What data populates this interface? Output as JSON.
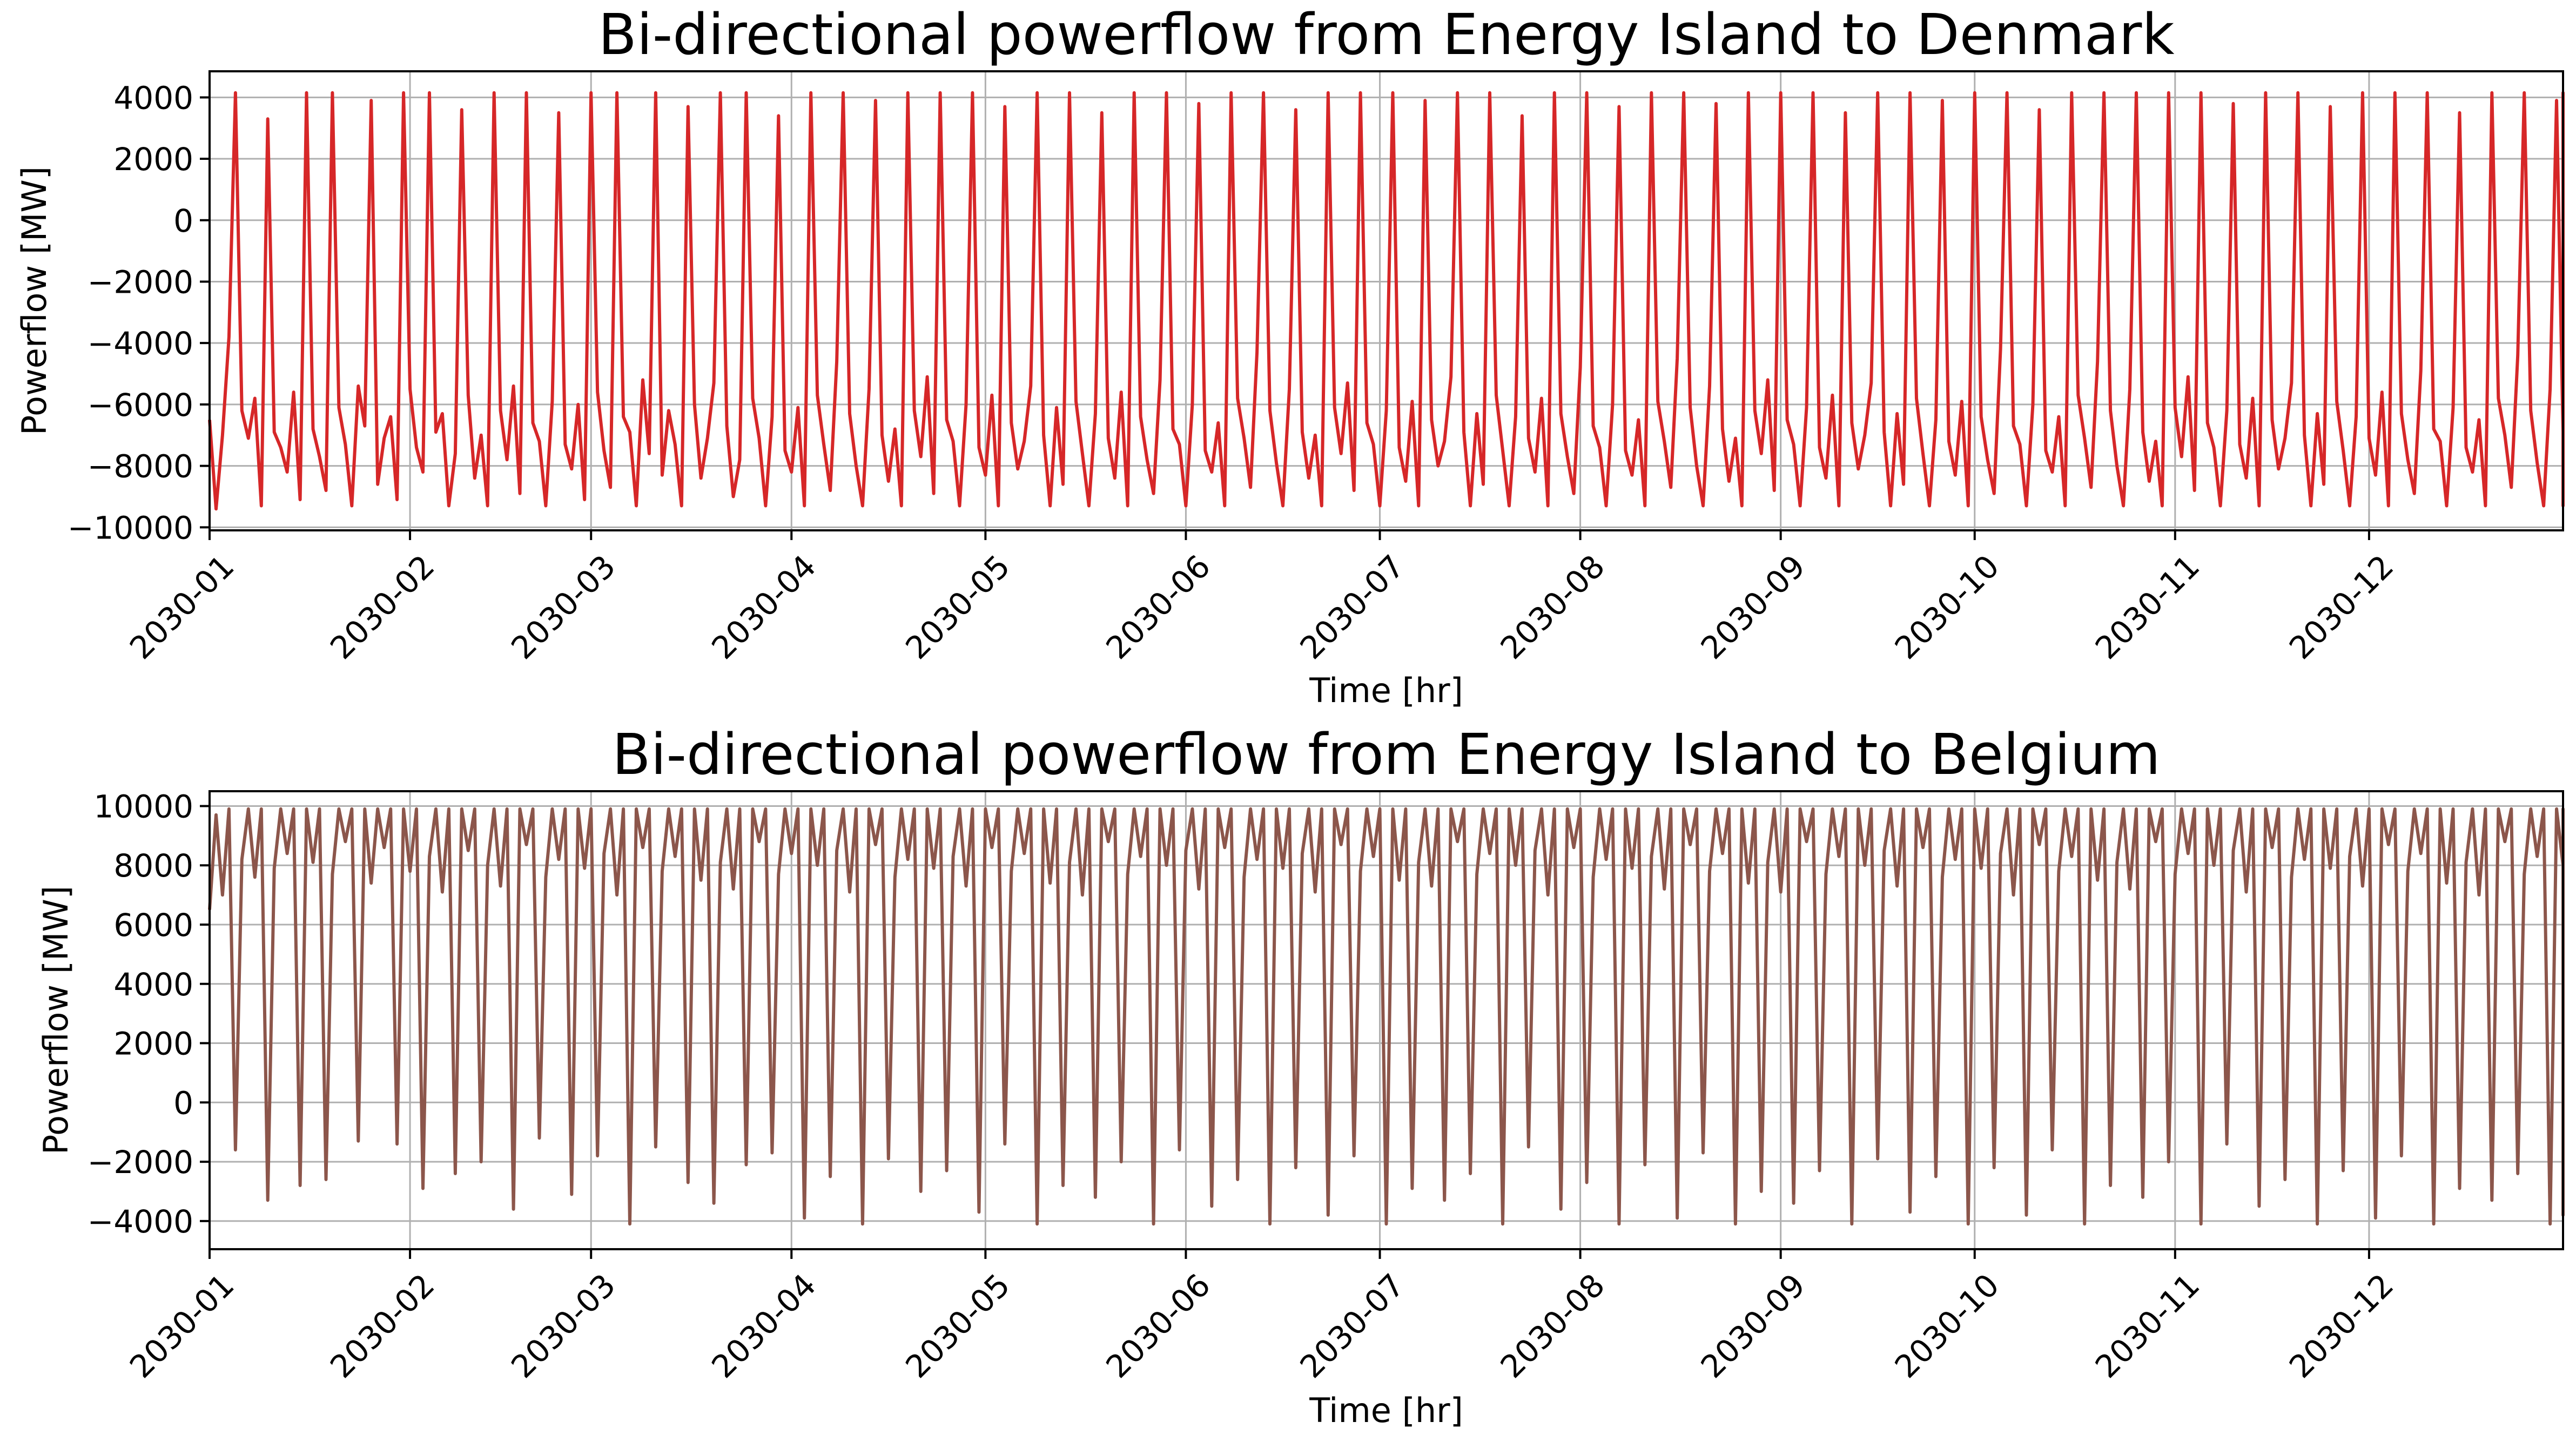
{
  "chart_data": [
    {
      "type": "line",
      "title": "Bi-directional powerflow from Energy Island to Denmark",
      "xlabel": "Time [hr]",
      "ylabel": "Powerflow [MW]",
      "x_tick_labels": [
        "2030-01",
        "2030-02",
        "2030-03",
        "2030-04",
        "2030-05",
        "2030-06",
        "2030-07",
        "2030-08",
        "2030-09",
        "2030-10",
        "2030-11",
        "2030-12"
      ],
      "y_tick_labels": [
        "−10000",
        "−8000",
        "−6000",
        "−4000",
        "−2000",
        "0",
        "2000",
        "4000"
      ],
      "y_ticks": [
        -10000,
        -8000,
        -6000,
        -4000,
        -2000,
        0,
        2000,
        4000
      ],
      "xlim": [
        "2030-01-01",
        "2030-12-31"
      ],
      "ylim": [
        -10100,
        4850
      ],
      "grid": true,
      "series": [
        {
          "color": "#d62728",
          "x_start": "2030-01-01",
          "x_step": "1 day",
          "values_note": "daily samples of an hourly series oscillating between about -9400 and 4150 MW",
          "values": [
            -6500,
            -9400,
            -7000,
            -3800,
            4150,
            -6200,
            -7100,
            -5800,
            -9300,
            3300,
            -6900,
            -7400,
            -8200,
            -5600,
            -9100,
            4150,
            -6800,
            -7700,
            -8800,
            4150,
            -6100,
            -7300,
            -9300,
            -5400,
            -6700,
            3900,
            -8600,
            -7100,
            -6400,
            -9100,
            4150,
            -5500,
            -7400,
            -8200,
            4150,
            -6900,
            -6300,
            -9300,
            -7600,
            3600,
            -5700,
            -8400,
            -7000,
            -9300,
            4150,
            -6200,
            -7800,
            -5400,
            -8900,
            4150,
            -6600,
            -7200,
            -9300,
            -5900,
            3500,
            -7300,
            -8100,
            -6000,
            -9100,
            4150,
            -5600,
            -7500,
            -8700,
            4150,
            -6400,
            -6900,
            -9300,
            -5200,
            -7600,
            4150,
            -8300,
            -6200,
            -7300,
            -9300,
            3700,
            -6000,
            -8400,
            -7100,
            -5300,
            4150,
            -6700,
            -9000,
            -7800,
            4150,
            -5800,
            -7100,
            -9300,
            -6400,
            3400,
            -7500,
            -8200,
            -6100,
            -9300,
            4150,
            -5700,
            -7300,
            -8800,
            -4600,
            4150,
            -6300,
            -8000,
            -9300,
            -5500,
            3900,
            -7000,
            -8500,
            -6800,
            -9300,
            4150,
            -6200,
            -7700,
            -5100,
            -8900,
            4150,
            -6500,
            -7200,
            -9300,
            -6000,
            4150,
            -7400,
            -8300,
            -5700,
            -9300,
            3700,
            -6600,
            -8100,
            -7200,
            -5400,
            4150,
            -7000,
            -9300,
            -6100,
            -8600,
            4150,
            -5900,
            -7600,
            -9300,
            -6300,
            3500,
            -7100,
            -8400,
            -5600,
            -9300,
            4150,
            -6400,
            -7800,
            -8900,
            -5200,
            4150,
            -6800,
            -7300,
            -9300,
            -6000,
            3800,
            -7500,
            -8200,
            -6600,
            -9300,
            4150,
            -5800,
            -7100,
            -8700,
            -4300,
            4150,
            -6200,
            -7900,
            -9300,
            -5500,
            3600,
            -6900,
            -8400,
            -7000,
            -9300,
            4150,
            -6100,
            -7600,
            -5300,
            -8800,
            4150,
            -6600,
            -7300,
            -9300,
            -6200,
            4150,
            -7400,
            -8500,
            -5900,
            -9300,
            3900,
            -6500,
            -8000,
            -7200,
            -5100,
            4150,
            -6900,
            -9300,
            -6300,
            -8600,
            4150,
            -5700,
            -7500,
            -9300,
            -6400,
            3400,
            -7100,
            -8200,
            -5800,
            -9300,
            4150,
            -6300,
            -7700,
            -8900,
            -4800,
            4150,
            -6700,
            -7400,
            -9300,
            -6000,
            3700,
            -7500,
            -8300,
            -6500,
            -9300,
            4150,
            -5900,
            -7200,
            -8700,
            -4500,
            4150,
            -6100,
            -8000,
            -9300,
            -5400,
            3800,
            -6800,
            -8500,
            -7100,
            -9300,
            4150,
            -6200,
            -7600,
            -5200,
            -8800,
            4150,
            -6500,
            -7300,
            -9300,
            -6100,
            4150,
            -7400,
            -8400,
            -5700,
            -9300,
            3500,
            -6600,
            -8100,
            -7000,
            -5300,
            4150,
            -6900,
            -9300,
            -6300,
            -8600,
            4150,
            -5800,
            -7600,
            -9300,
            -6500,
            3900,
            -7200,
            -8300,
            -5900,
            -9300,
            4150,
            -6400,
            -7800,
            -8900,
            -4200,
            4150,
            -6700,
            -7300,
            -9300,
            -6000,
            3600,
            -7500,
            -8200,
            -6400,
            -9300,
            4150,
            -5700,
            -7100,
            -8700,
            -4600,
            4150,
            -6200,
            -8000,
            -9300,
            -5500,
            4150,
            -6900,
            -8500,
            -7200,
            -9300,
            4150,
            -6100,
            -7700,
            -5100,
            -8800,
            4150,
            -6600,
            -7400,
            -9300,
            -6200,
            3800,
            -7300,
            -8400,
            -5800,
            -9300,
            4150,
            -6500,
            -8100,
            -7100,
            -5300,
            4150,
            -7000,
            -9300,
            -6300,
            -8600,
            3700,
            -5900,
            -7500,
            -9300,
            -6400,
            4150,
            -7100,
            -8300,
            -5600,
            -9300,
            4150,
            -6300,
            -7800,
            -8900,
            -4900,
            4150,
            -6800,
            -7200,
            -9300,
            -6100,
            3500,
            -7400,
            -8200,
            -6500,
            -9300,
            4150,
            -5800,
            -7000,
            -8700,
            -4400,
            4150,
            -6200,
            -7900,
            -9300,
            -5500,
            3900,
            -6900,
            -8500,
            -7300,
            -9300,
            4150,
            -6000,
            -7600,
            -5200,
            -8800,
            4150,
            -6700,
            -7400,
            -9300,
            -6300,
            4150,
            -7500,
            -8400,
            -5700,
            -9300,
            3600,
            -6500,
            -8000,
            -7100,
            -5400,
            4150,
            -6900,
            -9300,
            -6200,
            -8600,
            4150,
            -5700,
            -7600,
            -9300,
            -6600,
            3800
          ]
        }
      ]
    },
    {
      "type": "line",
      "title": "Bi-directional powerflow from Energy Island to Belgium",
      "xlabel": "Time [hr]",
      "ylabel": "Powerflow [MW]",
      "x_tick_labels": [
        "2030-01",
        "2030-02",
        "2030-03",
        "2030-04",
        "2030-05",
        "2030-06",
        "2030-07",
        "2030-08",
        "2030-09",
        "2030-10",
        "2030-11",
        "2030-12"
      ],
      "y_tick_labels": [
        "−4000",
        "−2000",
        "0",
        "2000",
        "4000",
        "6000",
        "8000",
        "10000"
      ],
      "y_ticks": [
        -4000,
        -2000,
        0,
        2000,
        4000,
        6000,
        8000,
        10000
      ],
      "xlim": [
        "2030-01-01",
        "2030-12-31"
      ],
      "ylim": [
        -4950,
        10500
      ],
      "grid": true,
      "series": [
        {
          "color": "#8c564b",
          "x_start": "2030-01-01",
          "x_step": "1 day",
          "values_note": "daily samples of an hourly series oscillating between about -4100 and 9900 MW",
          "values": [
            6500,
            9700,
            7000,
            9900,
            -1600,
            8200,
            9900,
            7600,
            9900,
            -3300,
            7900,
            9900,
            8400,
            9900,
            -2800,
            9900,
            8100,
            9900,
            -2600,
            7700,
            9900,
            8800,
            9900,
            -1300,
            9900,
            7400,
            9900,
            8600,
            9900,
            -1400,
            9900,
            7800,
            9900,
            -2900,
            8300,
            9900,
            7100,
            9900,
            -2400,
            9900,
            8500,
            9900,
            -2000,
            8000,
            9900,
            7300,
            9900,
            -3600,
            9900,
            8700,
            9900,
            -1200,
            7600,
            9900,
            8200,
            9900,
            -3100,
            9900,
            7900,
            9900,
            -1800,
            8400,
            9900,
            7000,
            9900,
            -4100,
            9900,
            8600,
            9900,
            -1500,
            7800,
            9900,
            8300,
            9900,
            -2700,
            9900,
            7500,
            9900,
            -3400,
            8100,
            9900,
            7200,
            9900,
            -2100,
            9900,
            8800,
            9900,
            -1700,
            7700,
            9900,
            8400,
            9900,
            -3900,
            9900,
            8000,
            9900,
            -2500,
            8500,
            9900,
            7100,
            9900,
            -4100,
            9900,
            8700,
            9900,
            -1900,
            7600,
            9900,
            8200,
            9900,
            -3000,
            9900,
            7900,
            9900,
            -2300,
            8300,
            9900,
            7300,
            9900,
            -3700,
            9900,
            8600,
            9900,
            -1400,
            7800,
            9900,
            8400,
            9900,
            -4100,
            9900,
            7400,
            9900,
            -2800,
            8100,
            9900,
            7000,
            9900,
            -3200,
            9900,
            8800,
            9900,
            -2000,
            7700,
            9900,
            8300,
            9900,
            -4100,
            9900,
            8000,
            9900,
            -1600,
            8500,
            9900,
            7200,
            9900,
            -3500,
            9900,
            8600,
            9900,
            -2600,
            7600,
            9900,
            8200,
            9900,
            -4100,
            9900,
            7900,
            9900,
            -2200,
            8400,
            9900,
            7100,
            9900,
            -3800,
            9900,
            8700,
            9900,
            -1800,
            7800,
            9900,
            8300,
            9900,
            -4100,
            9900,
            7500,
            9900,
            -2900,
            8100,
            9900,
            7300,
            9900,
            -3300,
            9900,
            8800,
            9900,
            -2400,
            7700,
            9900,
            8400,
            9900,
            -4100,
            9900,
            8000,
            9900,
            -1500,
            8500,
            9900,
            7000,
            9900,
            -3600,
            9900,
            8600,
            9900,
            -2700,
            7600,
            9900,
            8200,
            9900,
            -4100,
            9900,
            7900,
            9900,
            -2100,
            8300,
            9900,
            7200,
            9900,
            -3900,
            9900,
            8700,
            9900,
            -1700,
            7800,
            9900,
            8400,
            9900,
            -4100,
            9900,
            7400,
            9900,
            -3000,
            8100,
            9900,
            7100,
            9900,
            -3400,
            9900,
            8800,
            9900,
            -2300,
            7700,
            9900,
            8300,
            9900,
            -4100,
            9900,
            8000,
            9900,
            -1900,
            8500,
            9900,
            7300,
            9900,
            -3700,
            9900,
            8600,
            9900,
            -2500,
            7600,
            9900,
            8200,
            9900,
            -4100,
            9900,
            7900,
            9900,
            -2200,
            8400,
            9900,
            7000,
            9900,
            -3800,
            9900,
            8700,
            9900,
            -1600,
            7800,
            9900,
            8300,
            9900,
            -4100,
            9900,
            7500,
            9900,
            -2800,
            8100,
            9900,
            7200,
            9900,
            -3200,
            9900,
            8800,
            9900,
            -2000,
            7700,
            9900,
            8400,
            9900,
            -4100,
            9900,
            8000,
            9900,
            -1400,
            8500,
            9900,
            7100,
            9900,
            -3500,
            9900,
            8600,
            9900,
            -2600,
            7600,
            9900,
            8200,
            9900,
            -4100,
            9900,
            7900,
            9900,
            -2300,
            8300,
            9900,
            7300,
            9900,
            -3900,
            9900,
            8700,
            9900,
            -1800,
            7800,
            9900,
            8400,
            9900,
            -4100,
            9900,
            7400,
            9900,
            -2900,
            8100,
            9900,
            7000,
            9900,
            -3300,
            9900,
            8800,
            9900,
            -2400,
            7700,
            9900,
            8300,
            9900,
            -4100,
            9900,
            8000,
            9900,
            -1700,
            8500,
            9900,
            7200,
            9900,
            -3700,
            9900,
            8600,
            9900,
            -2500,
            7600,
            9900,
            8200,
            9900,
            -3800,
            9900,
            7600
          ]
        }
      ]
    }
  ]
}
